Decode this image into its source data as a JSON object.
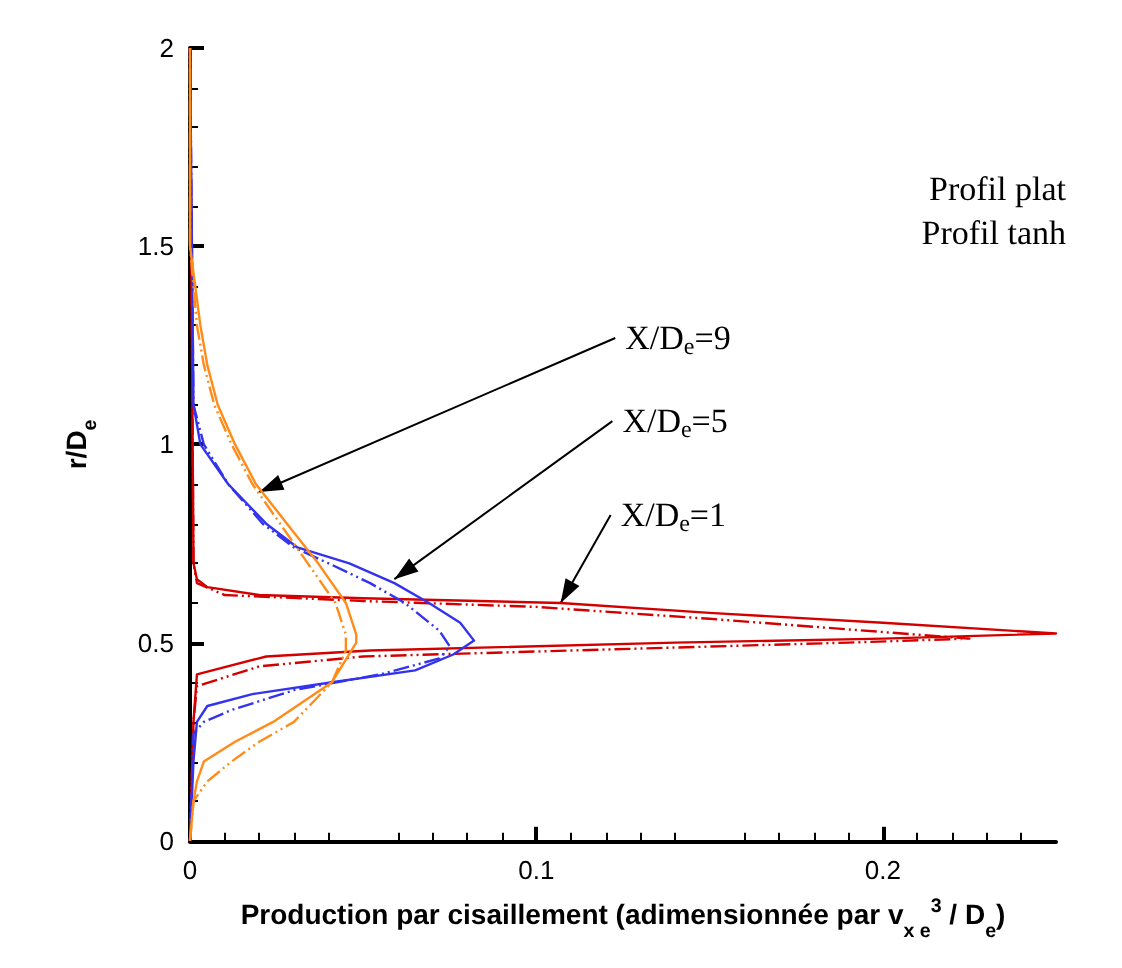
{
  "chart_data": {
    "type": "line",
    "xlabel": "Production par cisaillement (adimensionnée par v$_{x e}$$^{3}$ / D$_{e}$)",
    "ylabel": "r/D$_{e}$",
    "xlim": [
      0,
      0.25
    ],
    "xticks": [
      0,
      0.1,
      0.2
    ],
    "ylim": [
      0,
      2
    ],
    "yticks": [
      0,
      0.5,
      1,
      1.5,
      2
    ],
    "grid": false,
    "marker": "none",
    "annotations": [
      "Profil plat",
      "Profil tanh",
      {
        "text": "X/D$_{e}$=9",
        "x": 0.02,
        "y": 0.88
      },
      {
        "text": "X/D$_{e}$=5",
        "x": 0.059,
        "y": 0.66
      },
      {
        "text": "X/D$_{e}$=1",
        "x": 0.107,
        "y": 0.6
      }
    ],
    "series": [
      {
        "color": "#d40000",
        "line_style": "solid",
        "x": [
          0,
          0.001,
          0.002,
          0.022,
          0.052,
          0.14,
          0.2,
          0.25,
          0.2,
          0.15,
          0.107,
          0.05,
          0.02,
          0.005,
          0.002,
          0.001,
          0
        ],
        "values": [
          0,
          0.3,
          0.42,
          0.465,
          0.48,
          0.5,
          0.51,
          0.523,
          0.55,
          0.575,
          0.6,
          0.612,
          0.62,
          0.64,
          0.66,
          0.7,
          2
        ]
      },
      {
        "color": "#d40000",
        "line_style": "dashed",
        "x": [
          0,
          0.001,
          0.002,
          0.02,
          0.05,
          0.13,
          0.19,
          0.225,
          0.15,
          0.1,
          0.05,
          0.01,
          0.002,
          0.001,
          0
        ],
        "values": [
          0,
          0.3,
          0.39,
          0.44,
          0.465,
          0.485,
          0.5,
          0.51,
          0.56,
          0.59,
          0.605,
          0.62,
          0.65,
          0.7,
          2
        ]
      },
      {
        "color": "#3333ee",
        "line_style": "solid",
        "x": [
          0,
          0.001,
          0.002,
          0.005,
          0.018,
          0.041,
          0.065,
          0.076,
          0.082,
          0.078,
          0.069,
          0.059,
          0.046,
          0.031,
          0.022,
          0.011,
          0.003,
          0.001,
          0
        ],
        "values": [
          0,
          0.2,
          0.3,
          0.34,
          0.37,
          0.4,
          0.43,
          0.47,
          0.505,
          0.55,
          0.6,
          0.65,
          0.7,
          0.74,
          0.8,
          0.9,
          1.0,
          1.1,
          2
        ]
      },
      {
        "color": "#3333ee",
        "line_style": "dashed",
        "x": [
          0,
          0.001,
          0.004,
          0.012,
          0.03,
          0.055,
          0.072,
          0.075,
          0.072,
          0.062,
          0.052,
          0.04,
          0.03,
          0.021,
          0.011,
          0.004,
          0.001,
          0
        ],
        "values": [
          0,
          0.27,
          0.3,
          0.33,
          0.38,
          0.42,
          0.46,
          0.49,
          0.53,
          0.6,
          0.65,
          0.7,
          0.74,
          0.8,
          0.9,
          1.0,
          1.1,
          2
        ]
      },
      {
        "color": "#ff8c1a",
        "line_style": "solid",
        "x": [
          0,
          0.001,
          0.002,
          0.004,
          0.013,
          0.024,
          0.041,
          0.048,
          0.048,
          0.045,
          0.037,
          0.028,
          0.019,
          0.013,
          0.008,
          0.005,
          0.003,
          0,
          0
        ],
        "values": [
          0,
          0.1,
          0.15,
          0.2,
          0.25,
          0.3,
          0.4,
          0.5,
          0.52,
          0.6,
          0.7,
          0.8,
          0.9,
          1.0,
          1.1,
          1.2,
          1.3,
          1.5,
          2
        ]
      },
      {
        "color": "#ff8c1a",
        "line_style": "dashed",
        "x": [
          0,
          0.001,
          0.005,
          0.012,
          0.02,
          0.03,
          0.041,
          0.045,
          0.045,
          0.042,
          0.034,
          0.026,
          0.018,
          0.012,
          0.007,
          0.004,
          0.002,
          0,
          0
        ],
        "values": [
          0,
          0.1,
          0.15,
          0.2,
          0.25,
          0.3,
          0.4,
          0.48,
          0.52,
          0.6,
          0.7,
          0.8,
          0.9,
          1.0,
          1.1,
          1.2,
          1.3,
          1.5,
          2
        ]
      }
    ]
  }
}
